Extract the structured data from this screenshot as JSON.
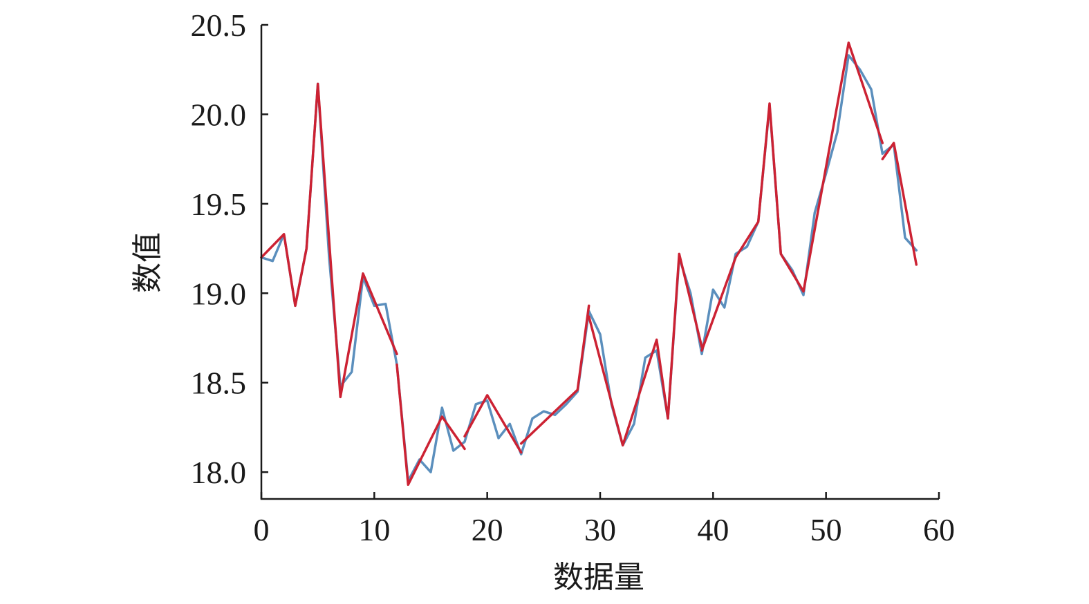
{
  "chart_data": {
    "type": "line",
    "title": "",
    "xlabel": "数据量",
    "ylabel": "数值",
    "xlim": [
      0,
      60
    ],
    "ylim": [
      17.85,
      20.5
    ],
    "xticks": [
      0,
      10,
      20,
      30,
      40,
      50,
      60
    ],
    "xtick_labels": [
      "0",
      "10",
      "20",
      "30",
      "40",
      "50",
      "60"
    ],
    "yticks": [
      18.0,
      18.5,
      19.0,
      19.5,
      20.0,
      20.5
    ],
    "ytick_labels": [
      "18.0",
      "18.5",
      "19.0",
      "19.5",
      "20.0",
      "20.5"
    ],
    "grid": false,
    "legend": "none",
    "series": [
      {
        "color": "#5b8fbd",
        "x": [
          0,
          1,
          2,
          3,
          4,
          5,
          6,
          7,
          8,
          9,
          10,
          11,
          12,
          13,
          14,
          15,
          16,
          17,
          18,
          19,
          20,
          21,
          22,
          23,
          24,
          25,
          26,
          27,
          28,
          29,
          30,
          31,
          32,
          33,
          34,
          35,
          36,
          37,
          38,
          39,
          40,
          41,
          42,
          43,
          44,
          45,
          46,
          47,
          48,
          49,
          50,
          51,
          52,
          53,
          54,
          55,
          56,
          57,
          58
        ],
        "values": [
          19.2,
          19.18,
          19.33,
          18.93,
          19.25,
          20.17,
          19.2,
          18.48,
          18.56,
          19.09,
          18.93,
          18.94,
          18.6,
          17.95,
          18.07,
          18.0,
          18.36,
          18.12,
          18.17,
          18.38,
          18.4,
          18.19,
          18.27,
          18.1,
          18.3,
          18.34,
          18.32,
          18.38,
          18.45,
          18.9,
          18.77,
          18.38,
          18.15,
          18.27,
          18.64,
          18.68,
          18.3,
          19.2,
          19.0,
          18.66,
          19.02,
          18.92,
          19.22,
          19.26,
          19.4,
          20.05,
          19.22,
          19.13,
          18.99,
          19.45,
          19.67,
          19.9,
          20.33,
          20.25,
          20.14,
          19.78,
          19.83,
          19.31,
          19.24
        ]
      },
      {
        "color": "#cc2233",
        "segments": [
          {
            "x": [
              0,
              2,
              3,
              4,
              5,
              7,
              9,
              12
            ],
            "values": [
              19.2,
              19.33,
              18.93,
              19.25,
              20.17,
              18.42,
              19.11,
              18.66
            ]
          },
          {
            "x": [
              12,
              13,
              16,
              18
            ],
            "values": [
              18.6,
              17.93,
              18.31,
              18.13
            ]
          },
          {
            "x": [
              18,
              20,
              23
            ],
            "values": [
              18.2,
              18.43,
              18.11
            ]
          },
          {
            "x": [
              23,
              28,
              29
            ],
            "values": [
              18.16,
              18.46,
              18.93
            ]
          },
          {
            "x": [
              29,
              32,
              35,
              36,
              37,
              39
            ],
            "values": [
              18.87,
              18.15,
              18.74,
              18.3,
              19.22,
              18.7
            ]
          },
          {
            "x": [
              39,
              42,
              44,
              45,
              46,
              48,
              52,
              55
            ],
            "values": [
              18.68,
              19.2,
              19.4,
              20.06,
              19.22,
              19.01,
              20.4,
              19.84
            ]
          },
          {
            "x": [
              55,
              56,
              58
            ],
            "values": [
              19.75,
              19.84,
              19.16
            ]
          }
        ]
      }
    ]
  }
}
